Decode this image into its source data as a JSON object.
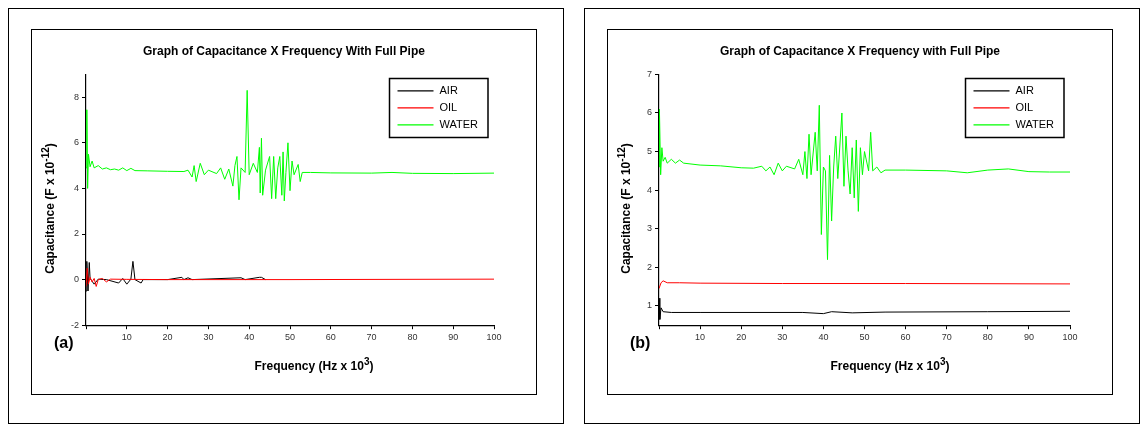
{
  "chart_data": [
    {
      "type": "line",
      "title": "Graph of Capacitance X Frequency With Full Pipe",
      "xlabel": "Frequency (Hz x 10$^{3}$)",
      "ylabel": "Capacitance (F x 10$^{-12}$)",
      "annotations": [
        "(a)"
      ],
      "legend": "top right",
      "grid": false,
      "xlim": [
        0,
        100
      ],
      "xticks": [
        {
          "value": 0,
          "label": null
        },
        10,
        20,
        30,
        40,
        50,
        60,
        70,
        80,
        90,
        100
      ],
      "ylim": [
        -2,
        9
      ],
      "yticks": [
        -2,
        0,
        2,
        4,
        6,
        8
      ],
      "series": [
        {
          "name": "AIR",
          "color": "#000000",
          "x": [
            0,
            0.2,
            0.5,
            0.8,
            1,
            2,
            3,
            5,
            8,
            9,
            10,
            11,
            11.5,
            12,
            13.5,
            14,
            20,
            23.5,
            24,
            25,
            26,
            38,
            39,
            42.5,
            43,
            44
          ],
          "values": [
            -0.5,
            0.8,
            -0.5,
            0.75,
            0.05,
            -0.2,
            0.02,
            0,
            -0.15,
            0.05,
            -0.2,
            0.02,
            0.8,
            0,
            -0.15,
            0,
            0,
            0.1,
            0,
            0.08,
            0,
            0.08,
            0,
            0.1,
            0.1,
            0
          ]
        },
        {
          "name": "OIL",
          "color": "#ff0000",
          "x": [
            0,
            0.3,
            0.6,
            1,
            1.5,
            2,
            2.5,
            3,
            4,
            5,
            6,
            10,
            20,
            50,
            100
          ],
          "values": [
            -0.3,
            0.5,
            -0.2,
            0.1,
            -0.1,
            0.05,
            -0.3,
            0,
            0.05,
            -0.1,
            0.02,
            0.01,
            0,
            0,
            0.02
          ]
        },
        {
          "name": "WATER",
          "color": "#00ff00",
          "x": [
            0,
            0.2,
            0.4,
            0.6,
            1,
            1.5,
            2,
            3,
            4,
            5,
            6,
            7,
            8,
            9,
            10,
            11,
            12,
            15,
            20,
            24,
            25,
            26,
            26.5,
            27,
            28,
            29,
            30,
            32,
            33,
            34,
            35,
            36,
            36.5,
            37,
            37.5,
            38,
            39,
            39.5,
            40,
            41,
            42,
            42.5,
            42.7,
            43,
            43.3,
            44,
            45,
            45.5,
            46,
            46.5,
            47,
            47.5,
            48,
            48.3,
            48.6,
            49,
            49.5,
            50,
            50.5,
            51,
            52,
            52.5,
            53,
            55,
            60,
            70,
            75,
            80,
            90,
            100
          ],
          "values": [
            4.9,
            7.45,
            4.0,
            5.5,
            4.95,
            5.2,
            4.9,
            5.0,
            4.85,
            4.9,
            4.82,
            4.85,
            4.8,
            4.9,
            4.78,
            4.88,
            4.78,
            4.77,
            4.75,
            4.74,
            4.8,
            4.5,
            5.0,
            4.3,
            5.1,
            4.6,
            4.8,
            4.65,
            4.9,
            4.4,
            4.85,
            4.1,
            5.0,
            5.4,
            3.5,
            4.9,
            4.7,
            8.3,
            4.6,
            5.1,
            4.7,
            5.8,
            3.8,
            6.2,
            3.7,
            4.8,
            5.4,
            3.55,
            5.4,
            3.55,
            4.9,
            5.4,
            3.7,
            5.6,
            3.45,
            4.7,
            6.0,
            3.9,
            5.2,
            4.6,
            5.05,
            4.3,
            4.7,
            4.7,
            4.68,
            4.67,
            4.7,
            4.66,
            4.65,
            4.67
          ]
        }
      ]
    },
    {
      "type": "line",
      "title": "Graph of Capacitance X Frequency with Full Pipe",
      "xlabel": "Frequency (Hz x 10$^{3}$)",
      "ylabel": "Capacitance (F x 10$^{-12}$)",
      "annotations": [
        "(b)"
      ],
      "legend": "top right",
      "grid": false,
      "xlim": [
        0,
        100
      ],
      "xticks": [
        {
          "value": 0,
          "label": null
        },
        10,
        20,
        30,
        40,
        50,
        60,
        70,
        80,
        90,
        100
      ],
      "ylim": [
        0.5,
        7
      ],
      "yticks": [
        1,
        2,
        3,
        4,
        5,
        6,
        7
      ],
      "series": [
        {
          "name": "AIR",
          "color": "#000000",
          "x": [
            0,
            0.2,
            0.5,
            1,
            3,
            10,
            35,
            40,
            42,
            47,
            55,
            80,
            100
          ],
          "values": [
            1.2,
            0.65,
            0.95,
            0.85,
            0.83,
            0.83,
            0.83,
            0.8,
            0.85,
            0.82,
            0.84,
            0.85,
            0.86
          ]
        },
        {
          "name": "OIL",
          "color": "#ff0000",
          "x": [
            0,
            0.5,
            1,
            2,
            5,
            10,
            30,
            60,
            100
          ],
          "values": [
            1.45,
            1.6,
            1.65,
            1.6,
            1.6,
            1.59,
            1.58,
            1.58,
            1.57
          ]
        },
        {
          "name": "WATER",
          "color": "#00ff00",
          "x": [
            0,
            0.1,
            0.4,
            0.7,
            1,
            1.5,
            2,
            3,
            4,
            5,
            6,
            10,
            15,
            20,
            23,
            25,
            26,
            27,
            28,
            29,
            30,
            31,
            33,
            34,
            35,
            35.5,
            36,
            36.5,
            37,
            38,
            38.5,
            39,
            39.5,
            40,
            40.5,
            41,
            41.5,
            42,
            42.5,
            43,
            43.5,
            44.5,
            45,
            45.5,
            46,
            46.5,
            47,
            47.5,
            48,
            48.5,
            49,
            49.5,
            50,
            51,
            51.5,
            52,
            53,
            54,
            55,
            60,
            70,
            75,
            80,
            85,
            90,
            95,
            100
          ],
          "values": [
            4.6,
            6.1,
            4.4,
            5.1,
            4.75,
            4.85,
            4.7,
            4.8,
            4.7,
            4.78,
            4.7,
            4.65,
            4.63,
            4.58,
            4.57,
            4.62,
            4.5,
            4.6,
            4.4,
            4.7,
            4.5,
            4.62,
            4.55,
            4.8,
            4.4,
            5.0,
            4.3,
            5.45,
            4.4,
            5.5,
            4.5,
            6.2,
            2.85,
            4.6,
            4.5,
            2.2,
            4.9,
            3.2,
            4.6,
            5.4,
            4.3,
            6.0,
            4.1,
            5.4,
            4.5,
            3.9,
            5.1,
            3.8,
            5.3,
            3.45,
            5.1,
            4.4,
            5.0,
            4.5,
            5.5,
            4.5,
            4.6,
            4.45,
            4.52,
            4.52,
            4.5,
            4.45,
            4.52,
            4.55,
            4.48,
            4.47,
            4.47
          ]
        }
      ]
    }
  ]
}
